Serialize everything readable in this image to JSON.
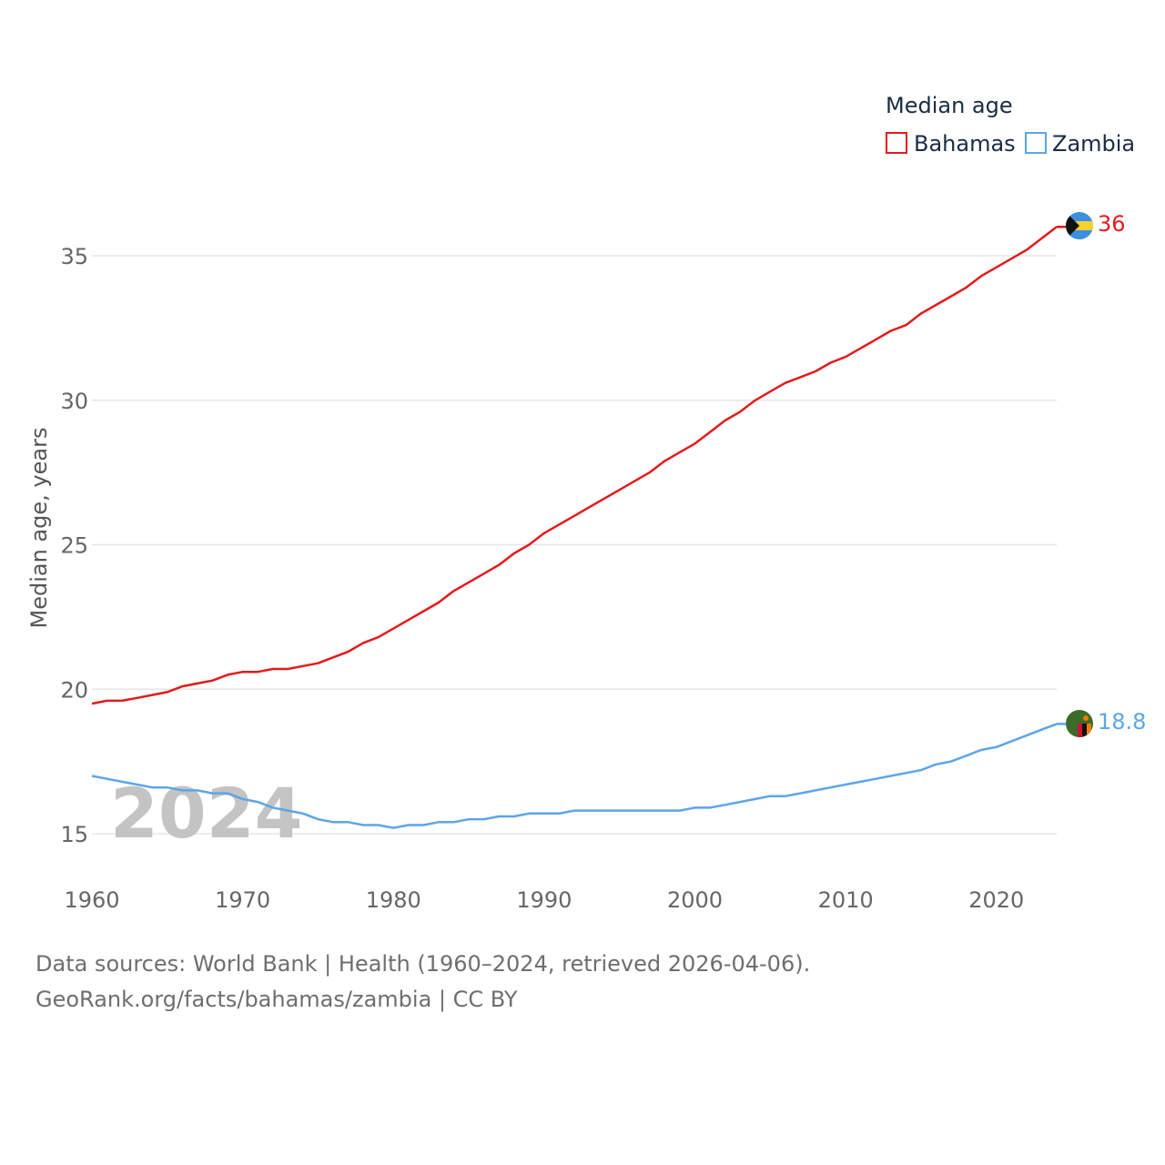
{
  "chart_data": {
    "type": "line",
    "legend_title": "Median age",
    "ylabel": "Median age, years",
    "xlim": [
      1960,
      2024
    ],
    "ylim": [
      13.8,
      36.6
    ],
    "yticks": [
      15,
      20,
      25,
      30,
      35
    ],
    "xticks": [
      1960,
      1970,
      1980,
      1990,
      2000,
      2010,
      2020
    ],
    "watermark_year": "2024",
    "grid": true,
    "legend_position": "top-right",
    "series": [
      {
        "name": "Bahamas",
        "color": "#e41a1c",
        "end_label": "36",
        "flag_icon": "bahamas-flag-icon",
        "x": [
          1960,
          1961,
          1962,
          1963,
          1964,
          1965,
          1966,
          1967,
          1968,
          1969,
          1970,
          1971,
          1972,
          1973,
          1974,
          1975,
          1976,
          1977,
          1978,
          1979,
          1980,
          1981,
          1982,
          1983,
          1984,
          1985,
          1986,
          1987,
          1988,
          1989,
          1990,
          1991,
          1992,
          1993,
          1994,
          1995,
          1996,
          1997,
          1998,
          1999,
          2000,
          2001,
          2002,
          2003,
          2004,
          2005,
          2006,
          2007,
          2008,
          2009,
          2010,
          2011,
          2012,
          2013,
          2014,
          2015,
          2016,
          2017,
          2018,
          2019,
          2020,
          2021,
          2022,
          2023,
          2024
        ],
        "values": [
          19.5,
          19.6,
          19.6,
          19.7,
          19.8,
          19.9,
          20.1,
          20.2,
          20.3,
          20.5,
          20.6,
          20.6,
          20.7,
          20.7,
          20.8,
          20.9,
          21.1,
          21.3,
          21.6,
          21.8,
          22.1,
          22.4,
          22.7,
          23.0,
          23.4,
          23.7,
          24.0,
          24.3,
          24.7,
          25.0,
          25.4,
          25.7,
          26.0,
          26.3,
          26.6,
          26.9,
          27.2,
          27.5,
          27.9,
          28.2,
          28.5,
          28.9,
          29.3,
          29.6,
          30.0,
          30.3,
          30.6,
          30.8,
          31.0,
          31.3,
          31.5,
          31.8,
          32.1,
          32.4,
          32.6,
          33.0,
          33.3,
          33.6,
          33.9,
          34.3,
          34.6,
          34.9,
          35.2,
          35.6,
          36.0
        ]
      },
      {
        "name": "Zambia",
        "color": "#5da5e8",
        "end_label": "18.8",
        "flag_icon": "zambia-flag-icon",
        "x": [
          1960,
          1961,
          1962,
          1963,
          1964,
          1965,
          1966,
          1967,
          1968,
          1969,
          1970,
          1971,
          1972,
          1973,
          1974,
          1975,
          1976,
          1977,
          1978,
          1979,
          1980,
          1981,
          1982,
          1983,
          1984,
          1985,
          1986,
          1987,
          1988,
          1989,
          1990,
          1991,
          1992,
          1993,
          1994,
          1995,
          1996,
          1997,
          1998,
          1999,
          2000,
          2001,
          2002,
          2003,
          2004,
          2005,
          2006,
          2007,
          2008,
          2009,
          2010,
          2011,
          2012,
          2013,
          2014,
          2015,
          2016,
          2017,
          2018,
          2019,
          2020,
          2021,
          2022,
          2023,
          2024
        ],
        "values": [
          17.0,
          16.9,
          16.8,
          16.7,
          16.6,
          16.6,
          16.5,
          16.5,
          16.4,
          16.4,
          16.2,
          16.1,
          15.9,
          15.8,
          15.7,
          15.5,
          15.4,
          15.4,
          15.3,
          15.3,
          15.2,
          15.3,
          15.3,
          15.4,
          15.4,
          15.5,
          15.5,
          15.6,
          15.6,
          15.7,
          15.7,
          15.7,
          15.8,
          15.8,
          15.8,
          15.8,
          15.8,
          15.8,
          15.8,
          15.8,
          15.9,
          15.9,
          16.0,
          16.1,
          16.2,
          16.3,
          16.3,
          16.4,
          16.5,
          16.6,
          16.7,
          16.8,
          16.9,
          17.0,
          17.1,
          17.2,
          17.4,
          17.5,
          17.7,
          17.9,
          18.0,
          18.2,
          18.4,
          18.6,
          18.8
        ]
      }
    ]
  },
  "footer": {
    "line1": "Data sources: World Bank | Health (1960–2024, retrieved 2026-04-06).",
    "line2": "GeoRank.org/facts/bahamas/zambia | CC BY"
  }
}
